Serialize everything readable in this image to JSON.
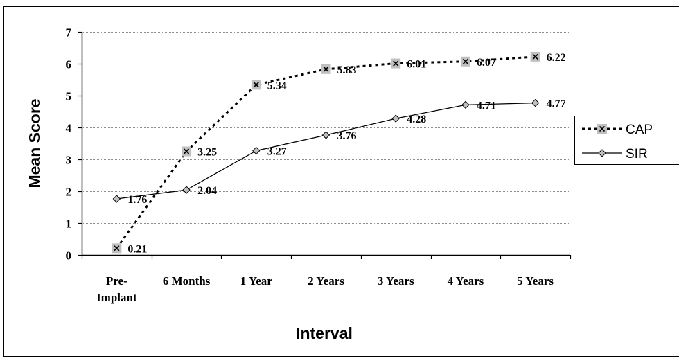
{
  "chart_data": {
    "type": "line",
    "categories": [
      "Pre-\nImplant",
      "6 Months",
      "1 Year",
      "2 Years",
      "3 Years",
      "4 Years",
      "5 Years"
    ],
    "xlabel": "Interval",
    "ylabel": "Mean Score",
    "ylim": [
      0,
      7
    ],
    "yticks": [
      "0",
      "1",
      "2",
      "3",
      "4",
      "5",
      "6",
      "7"
    ],
    "grid": true,
    "legend_position": "right",
    "series": [
      {
        "name": "CAP",
        "values": [
          0.21,
          3.25,
          5.34,
          5.83,
          6.01,
          6.07,
          6.22
        ],
        "labels": [
          "0.21",
          "3.25",
          "5.34",
          "5.83",
          "6.01",
          "6.07",
          "6.22"
        ],
        "line_style": "dotted",
        "marker": "x-square",
        "color": "#000000",
        "marker_fill": "#c0c0c0"
      },
      {
        "name": "SIR",
        "values": [
          1.76,
          2.04,
          3.27,
          3.76,
          4.28,
          4.71,
          4.77
        ],
        "labels": [
          "1.76",
          "2.04",
          "3.27",
          "3.76",
          "4.28",
          "4.71",
          "4.77"
        ],
        "line_style": "solid",
        "marker": "diamond",
        "color": "#000000",
        "marker_fill": "#c0c0c0"
      }
    ]
  }
}
